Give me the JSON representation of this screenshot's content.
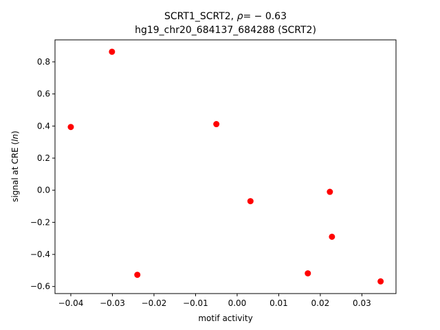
{
  "chart_data": {
    "type": "scatter",
    "title_line1_prefix": "SCRT1_SCRT2, ",
    "title_rho_symbol": "ρ",
    "title_rho_value": "= − 0.63",
    "title_line2": "hg19_chr20_684137_684288 (SCRT2)",
    "xlabel": "motif activity",
    "ylabel_prefix": "signal at CRE (",
    "ylabel_italic": "ln",
    "ylabel_suffix": ")",
    "xlim": [
      -0.0438,
      0.0382
    ],
    "ylim": [
      -0.644,
      0.937
    ],
    "x_ticks": [
      {
        "value": -0.04,
        "label": "−0.04"
      },
      {
        "value": -0.03,
        "label": "−0.03"
      },
      {
        "value": -0.02,
        "label": "−0.02"
      },
      {
        "value": -0.01,
        "label": "−0.01"
      },
      {
        "value": 0.0,
        "label": "0.00"
      },
      {
        "value": 0.01,
        "label": "0.01"
      },
      {
        "value": 0.02,
        "label": "0.02"
      },
      {
        "value": 0.03,
        "label": "0.03"
      }
    ],
    "y_ticks": [
      {
        "value": -0.6,
        "label": "−0.6"
      },
      {
        "value": -0.4,
        "label": "−0.4"
      },
      {
        "value": -0.2,
        "label": "−0.2"
      },
      {
        "value": 0.0,
        "label": "0.0"
      },
      {
        "value": 0.2,
        "label": "0.2"
      },
      {
        "value": 0.4,
        "label": "0.4"
      },
      {
        "value": 0.6,
        "label": "0.6"
      },
      {
        "value": 0.8,
        "label": "0.8"
      }
    ],
    "series": [
      {
        "color": "#ff0000",
        "points": [
          {
            "x": -0.04,
            "y": 0.394
          },
          {
            "x": -0.0301,
            "y": 0.863
          },
          {
            "x": -0.024,
            "y": -0.527
          },
          {
            "x": -0.005,
            "y": 0.412
          },
          {
            "x": 0.0032,
            "y": -0.068
          },
          {
            "x": 0.017,
            "y": -0.518
          },
          {
            "x": 0.0223,
            "y": -0.01
          },
          {
            "x": 0.0228,
            "y": -0.29
          },
          {
            "x": 0.0345,
            "y": -0.568
          }
        ]
      }
    ],
    "grid": false,
    "legend": "none"
  }
}
